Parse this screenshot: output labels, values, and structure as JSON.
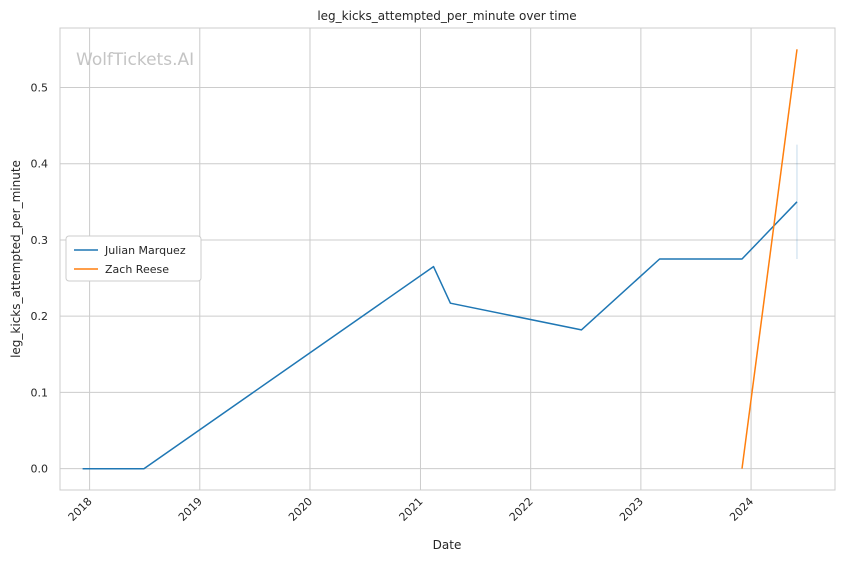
{
  "chart_data": {
    "type": "line",
    "title": "leg_kicks_attempted_per_minute over time",
    "xlabel": "Date",
    "ylabel": "leg_kicks_attempted_per_minute",
    "watermark": "WolfTickets.AI",
    "x_ticks": [
      "2018",
      "2019",
      "2020",
      "2021",
      "2022",
      "2023",
      "2024"
    ],
    "y_ticks": [
      "0.0",
      "0.1",
      "0.2",
      "0.3",
      "0.4",
      "0.5"
    ],
    "xlim": [
      "2017-09-25",
      "2024-10-05"
    ],
    "ylim": [
      -0.028,
      0.578
    ],
    "grid": true,
    "legend_position": "center-left",
    "series": [
      {
        "name": "Julian Marquez",
        "color": "#1f77b4",
        "points": [
          [
            "2017-12-09",
            0.0
          ],
          [
            "2018-06-30",
            0.0
          ],
          [
            "2021-02-13",
            0.265
          ],
          [
            "2021-04-10",
            0.217
          ],
          [
            "2022-06-18",
            0.182
          ],
          [
            "2023-03-04",
            0.275
          ],
          [
            "2023-12-02",
            0.275
          ],
          [
            "2024-06-01",
            0.35
          ]
        ],
        "error_band": [
          {
            "date": "2024-06-01",
            "low": 0.275,
            "high": 0.425
          }
        ]
      },
      {
        "name": "Zach Reese",
        "color": "#ff7f0e",
        "points": [
          [
            "2023-12-02",
            0.0
          ],
          [
            "2024-06-01",
            0.55
          ]
        ]
      }
    ]
  }
}
